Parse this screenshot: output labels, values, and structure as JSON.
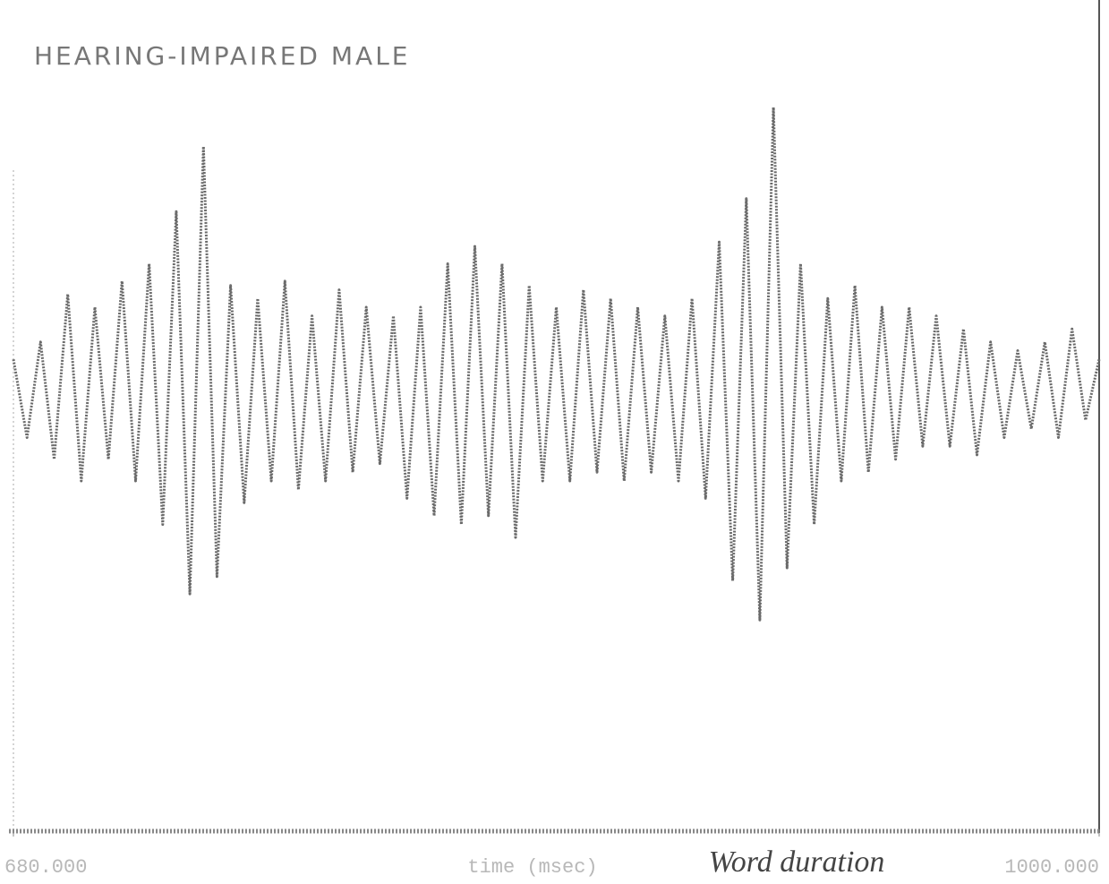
{
  "chart_data": {
    "type": "line",
    "title": "HEARING-IMPAIRED MALE",
    "x_label": "time (msec)",
    "annotation": "Word duration",
    "xlim": [
      680,
      1000
    ],
    "xticks": [
      {
        "value": 680,
        "label": "680.000"
      },
      {
        "value": 1000,
        "label": "1000.000"
      }
    ],
    "ylim": [
      -1,
      1
    ],
    "x": [
      680,
      684,
      688,
      692,
      696,
      700,
      704,
      708,
      712,
      716,
      720,
      724,
      728,
      732,
      736,
      740,
      744,
      748,
      752,
      756,
      760,
      764,
      768,
      772,
      776,
      780,
      784,
      788,
      792,
      796,
      800,
      804,
      808,
      812,
      816,
      820,
      824,
      828,
      832,
      836,
      840,
      844,
      848,
      852,
      856,
      860,
      864,
      868,
      872,
      876,
      880,
      884,
      888,
      892,
      896,
      900,
      904,
      908,
      912,
      916,
      920,
      924,
      928,
      932,
      936,
      940,
      944,
      948,
      952,
      956,
      960,
      964,
      968,
      972,
      976,
      980,
      984,
      988,
      992,
      996,
      1000
    ],
    "series": [
      {
        "color": "#6a6a6a",
        "values": [
          0.08,
          -0.1,
          0.12,
          -0.15,
          0.23,
          -0.2,
          0.2,
          -0.15,
          0.26,
          -0.2,
          0.3,
          -0.3,
          0.42,
          -0.46,
          0.57,
          -0.42,
          0.25,
          -0.25,
          0.22,
          -0.2,
          0.26,
          -0.22,
          0.18,
          -0.2,
          0.24,
          -0.18,
          0.2,
          -0.16,
          0.18,
          -0.24,
          0.2,
          -0.28,
          0.3,
          -0.3,
          0.34,
          -0.28,
          0.3,
          -0.33,
          0.25,
          -0.2,
          0.2,
          -0.2,
          0.24,
          -0.18,
          0.22,
          -0.2,
          0.2,
          -0.18,
          0.18,
          -0.2,
          0.22,
          -0.24,
          0.35,
          -0.43,
          0.45,
          -0.52,
          0.66,
          -0.4,
          0.3,
          -0.3,
          0.22,
          -0.2,
          0.25,
          -0.18,
          0.2,
          -0.15,
          0.2,
          -0.12,
          0.18,
          -0.12,
          0.15,
          -0.14,
          0.12,
          -0.1,
          0.1,
          -0.08,
          0.12,
          -0.1,
          0.15,
          -0.06,
          0.08
        ]
      }
    ]
  }
}
